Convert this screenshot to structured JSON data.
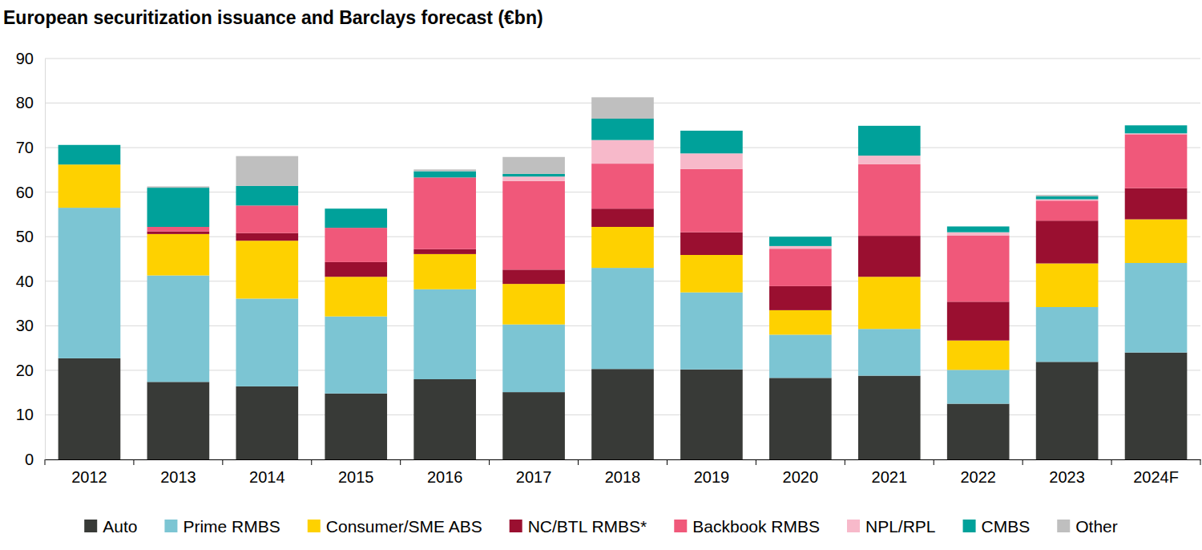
{
  "chart_data": {
    "type": "bar",
    "title": "European securitization issuance and Barclays forecast (€bn)",
    "stacked": true,
    "grid": true,
    "legend": "bottom",
    "categories": [
      "2012",
      "2013",
      "2014",
      "2015",
      "2016",
      "2017",
      "2018",
      "2019",
      "2020",
      "2021",
      "2022",
      "2023",
      "2024F"
    ],
    "ylim": [
      0,
      90
    ],
    "yticks": [
      0,
      10,
      20,
      30,
      40,
      50,
      60,
      70,
      80,
      90
    ],
    "series": [
      {
        "name": "Auto",
        "color": "#383a37",
        "values": [
          22.7,
          17.4,
          16.4,
          14.8,
          18.0,
          15.1,
          20.3,
          20.2,
          18.3,
          18.8,
          12.5,
          21.9,
          24.0
        ]
      },
      {
        "name": "Prime RMBS",
        "color": "#7cc5d3",
        "values": [
          33.8,
          23.9,
          19.7,
          17.3,
          20.2,
          15.2,
          22.7,
          17.3,
          9.7,
          10.5,
          7.6,
          12.3,
          20.1
        ]
      },
      {
        "name": "Consumer/SME ABS",
        "color": "#fed100",
        "values": [
          9.7,
          9.3,
          13.0,
          8.9,
          7.9,
          9.1,
          9.2,
          8.4,
          5.5,
          11.7,
          6.6,
          9.8,
          9.8
        ]
      },
      {
        "name": "NC/BTL RMBS*",
        "color": "#9a0f30",
        "values": [
          0,
          0.6,
          1.7,
          3.3,
          1.1,
          3.2,
          4.1,
          5.1,
          5.4,
          9.2,
          8.7,
          9.6,
          7.0
        ]
      },
      {
        "name": "Backbook RMBS",
        "color": "#f0587a",
        "values": [
          0,
          1.0,
          6.2,
          7.7,
          16.1,
          19.9,
          10.1,
          14.2,
          8.4,
          16.1,
          14.9,
          4.5,
          12.1
        ]
      },
      {
        "name": "NPL/RPL",
        "color": "#f7b9ca",
        "values": [
          0,
          0,
          0,
          0,
          0,
          1.0,
          5.3,
          3.5,
          0.6,
          1.9,
          0.7,
          0.3,
          0.2
        ]
      },
      {
        "name": "CMBS",
        "color": "#00a19a",
        "values": [
          4.4,
          8.8,
          4.4,
          4.3,
          1.4,
          0.6,
          4.8,
          5.1,
          2.1,
          6.7,
          1.3,
          0.7,
          1.8
        ]
      },
      {
        "name": "Other",
        "color": "#bfbfbf",
        "values": [
          0,
          0.3,
          6.7,
          0,
          0.4,
          3.8,
          4.8,
          0,
          0,
          0,
          0,
          0.3,
          0
        ]
      }
    ]
  }
}
